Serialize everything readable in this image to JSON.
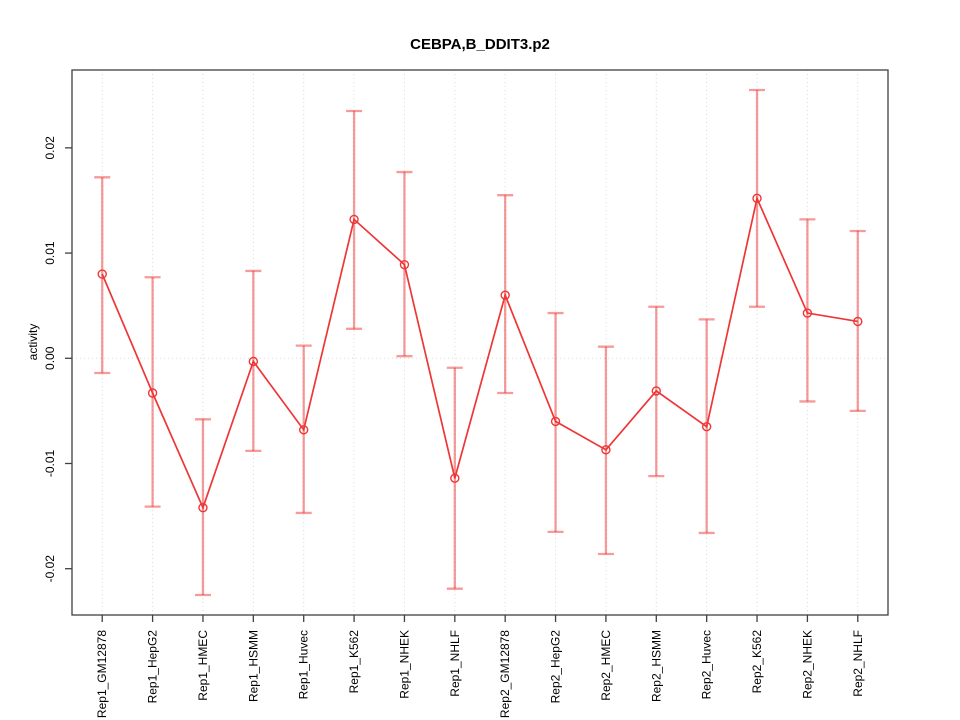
{
  "chart_data": {
    "type": "line",
    "title": "CEBPA,B_DDIT3.p2",
    "xlabel": "",
    "ylabel": "activity",
    "categories": [
      "Rep1_GM12878",
      "Rep1_HepG2",
      "Rep1_HMEC",
      "Rep1_HSMM",
      "Rep1_Huvec",
      "Rep1_K562",
      "Rep1_NHEK",
      "Rep1_NHLF",
      "Rep2_GM12878",
      "Rep2_HepG2",
      "Rep2_HMEC",
      "Rep2_HSMM",
      "Rep2_Huvec",
      "Rep2_K562",
      "Rep2_NHEK",
      "Rep2_NHLF"
    ],
    "series": [
      {
        "name": "activity",
        "values": [
          0.008,
          -0.0033,
          -0.0142,
          -0.0003,
          -0.0068,
          0.0132,
          0.0089,
          -0.0114,
          0.006,
          -0.006,
          -0.0087,
          -0.0031,
          -0.0065,
          0.0152,
          0.0043,
          0.0035
        ],
        "upper": [
          0.0172,
          0.0077,
          -0.0058,
          0.0083,
          0.0012,
          0.0235,
          0.0177,
          -0.0009,
          0.0155,
          0.0043,
          0.0011,
          0.0049,
          0.0037,
          0.0255,
          0.0132,
          0.0121
        ],
        "lower": [
          -0.0014,
          -0.0141,
          -0.0225,
          -0.0088,
          -0.0147,
          0.0028,
          0.0002,
          -0.0219,
          -0.0033,
          -0.0165,
          -0.0186,
          -0.0112,
          -0.0166,
          0.0049,
          -0.0041,
          -0.005
        ]
      }
    ],
    "y_ticks": [
      {
        "value": -0.02,
        "label": "-0.02"
      },
      {
        "value": -0.01,
        "label": "-0.01"
      },
      {
        "value": 0.0,
        "label": "0.00"
      },
      {
        "value": 0.01,
        "label": "0.01"
      },
      {
        "value": 0.02,
        "label": "0.02"
      }
    ],
    "ylim": [
      -0.0244,
      0.0274
    ],
    "grid": "vertical-dotted-per-category",
    "zero_line": true,
    "legend_position": "none",
    "colors": {
      "line": "#ee3636",
      "marker": "#ee3636",
      "error_bar": "#ee3636",
      "error_bar_opacity": "0.5",
      "grid": "#d9d9d9",
      "axis": "#404040",
      "background": "#ffffff"
    }
  }
}
